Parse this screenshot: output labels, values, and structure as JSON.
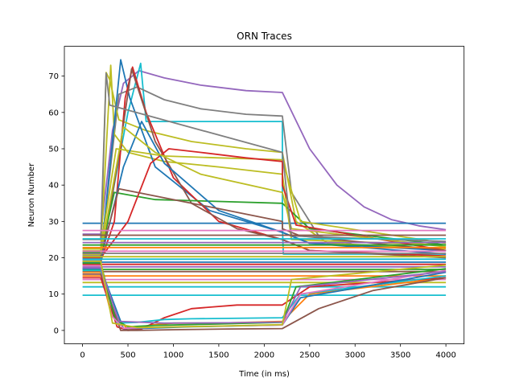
{
  "chart_data": {
    "type": "line",
    "title": "ORN Traces",
    "xlabel": "Time (in ms)",
    "ylabel": "Neuron Number",
    "xlim": [
      -200,
      4200
    ],
    "ylim": [
      -3.7,
      78.2
    ],
    "xticks": [
      0,
      500,
      1000,
      1500,
      2000,
      2500,
      3000,
      3500,
      4000
    ],
    "yticks": [
      0,
      10,
      20,
      30,
      40,
      50,
      60,
      70
    ],
    "grid": false,
    "legend": "none",
    "stimulus_window_ms": [
      200,
      2200
    ],
    "palette": [
      "#1f77b4",
      "#ff7f0e",
      "#2ca02c",
      "#d62728",
      "#9467bd",
      "#8c564b",
      "#e377c2",
      "#7f7f7f",
      "#bcbd22",
      "#17becf"
    ],
    "series": [
      {
        "color": "#9467bd",
        "x": [
          0,
          200,
          330,
          450,
          620,
          900,
          1300,
          1800,
          2200,
          2500,
          2800,
          3100,
          3400,
          3700,
          4000
        ],
        "y": [
          26.5,
          26.5,
          55,
          68,
          71.5,
          69.5,
          67.5,
          66,
          65.5,
          50,
          40,
          34,
          30.5,
          28.8,
          27.7
        ]
      },
      {
        "color": "#1f77b4",
        "x": [
          0,
          4000
        ],
        "y": [
          29.5,
          29.5
        ]
      },
      {
        "color": "#17becf",
        "x": [
          0,
          200,
          500,
          640,
          700,
          2200,
          2200,
          2210,
          4000
        ],
        "y": [
          20.5,
          20.5,
          60,
          73.5,
          57.5,
          57.5,
          29,
          21,
          21
        ]
      },
      {
        "color": "#7f7f7f",
        "x": [
          0,
          200,
          400,
          600,
          900,
          1300,
          1800,
          2200,
          2300,
          2600,
          3000,
          4000
        ],
        "y": [
          21,
          21,
          65,
          67,
          63.5,
          61,
          59.5,
          59,
          38,
          26,
          23.5,
          22
        ]
      },
      {
        "color": "#bcbd22",
        "x": [
          0,
          200,
          260,
          300,
          400,
          700,
          1200,
          1800,
          2200,
          2350,
          2700,
          4000
        ],
        "y": [
          21,
          21,
          71,
          69,
          58,
          55,
          52,
          50,
          49,
          30,
          24,
          22.5
        ]
      },
      {
        "color": "#bcbd22",
        "x": [
          0,
          200,
          310,
          350,
          500,
          900,
          1500,
          2200,
          2200,
          2300,
          4000
        ],
        "y": [
          22,
          22,
          73,
          54,
          49,
          46.5,
          45,
          43,
          43,
          25,
          23.5
        ]
      },
      {
        "color": "#1f77b4",
        "x": [
          0,
          200,
          420,
          520,
          800,
          1400,
          2200,
          2500,
          4000
        ],
        "y": [
          20,
          20,
          74.5,
          64,
          45,
          33,
          27,
          24,
          22
        ]
      },
      {
        "color": "#d62728",
        "x": [
          0,
          200,
          350,
          470,
          550,
          700,
          1000,
          1500,
          2200,
          2500,
          4000
        ],
        "y": [
          19,
          19,
          30,
          64,
          72.5,
          60,
          42,
          30,
          25,
          22,
          20.5
        ]
      },
      {
        "color": "#8c564b",
        "x": [
          0,
          200,
          380,
          540,
          800,
          1200,
          1700,
          2200,
          2500,
          4000
        ],
        "y": [
          18.5,
          18.5,
          45,
          72,
          52,
          35,
          28,
          25,
          22,
          20
        ]
      },
      {
        "color": "#2ca02c",
        "x": [
          0,
          200,
          350,
          800,
          1500,
          2200,
          2500,
          4000
        ],
        "y": [
          21.5,
          21.5,
          38,
          36,
          35.5,
          35,
          28,
          23.5
        ]
      },
      {
        "color": "#bcbd22",
        "x": [
          0,
          200,
          370,
          900,
          1500,
          2200,
          2200,
          2400,
          4000
        ],
        "y": [
          22.5,
          22.5,
          50,
          48,
          47.5,
          47,
          47,
          30,
          24
        ]
      },
      {
        "color": "#d62728",
        "x": [
          0,
          200,
          500,
          750,
          950,
          1300,
          1800,
          2200,
          2200,
          2350,
          4000
        ],
        "y": [
          20,
          20,
          30,
          46,
          50,
          49,
          47.5,
          46.5,
          40,
          29,
          22
        ]
      },
      {
        "color": "#1f77b4",
        "x": [
          0,
          200,
          450,
          650,
          900,
          1500,
          2200,
          2500,
          4000
        ],
        "y": [
          19.5,
          19.5,
          45,
          57.5,
          46,
          33,
          27,
          24,
          21
        ]
      },
      {
        "color": "#8c564b",
        "x": [
          0,
          200,
          400,
          1000,
          1600,
          2200,
          2200,
          2400,
          4000
        ],
        "y": [
          20.5,
          20.5,
          39,
          36,
          33,
          30,
          28,
          26,
          22
        ]
      },
      {
        "color": "#bcbd22",
        "x": [
          0,
          200,
          450,
          800,
          1300,
          2200,
          2300,
          4000
        ],
        "y": [
          21,
          21,
          56,
          49,
          43,
          38,
          28,
          23
        ]
      },
      {
        "color": "#7f7f7f",
        "x": [
          0,
          200,
          260,
          300,
          2200,
          2300,
          4000
        ],
        "y": [
          25,
          25,
          70.8,
          62,
          49,
          26,
          24.5
        ]
      },
      {
        "color": "#e377c2",
        "x": [
          0,
          4000
        ],
        "y": [
          27.5,
          27.5
        ]
      },
      {
        "color": "#8c564b",
        "x": [
          0,
          4000
        ],
        "y": [
          26.2,
          26.2
        ]
      },
      {
        "color": "#17becf",
        "x": [
          0,
          4000
        ],
        "y": [
          25.2,
          25.2
        ]
      },
      {
        "color": "#9467bd",
        "x": [
          0,
          4000
        ],
        "y": [
          24.2,
          24.2
        ]
      },
      {
        "color": "#2ca02c",
        "x": [
          0,
          4000
        ],
        "y": [
          23.5,
          23.5
        ]
      },
      {
        "color": "#ff7f0e",
        "x": [
          0,
          4000
        ],
        "y": [
          22.8,
          22.8
        ]
      },
      {
        "color": "#e377c2",
        "x": [
          0,
          4000
        ],
        "y": [
          21.8,
          21.8
        ]
      },
      {
        "color": "#7f7f7f",
        "x": [
          0,
          4000
        ],
        "y": [
          21.2,
          21.2
        ]
      },
      {
        "color": "#bcbd22",
        "x": [
          0,
          4000
        ],
        "y": [
          20.3,
          20.3
        ]
      },
      {
        "color": "#17becf",
        "x": [
          0,
          4000
        ],
        "y": [
          19.6,
          19.6
        ]
      },
      {
        "color": "#1f77b4",
        "x": [
          0,
          4000
        ],
        "y": [
          18.8,
          18.8
        ]
      },
      {
        "color": "#d62728",
        "x": [
          0,
          4000
        ],
        "y": [
          18.2,
          18.2
        ]
      },
      {
        "color": "#9467bd",
        "x": [
          0,
          4000
        ],
        "y": [
          17.5,
          17.5
        ]
      },
      {
        "color": "#2ca02c",
        "x": [
          0,
          4000
        ],
        "y": [
          16.8,
          16.8
        ]
      },
      {
        "color": "#8c564b",
        "x": [
          0,
          4000
        ],
        "y": [
          16.2,
          16.2
        ]
      },
      {
        "color": "#ff7f0e",
        "x": [
          0,
          4000
        ],
        "y": [
          15,
          15
        ]
      },
      {
        "color": "#e377c2",
        "x": [
          0,
          4000
        ],
        "y": [
          14,
          14
        ]
      },
      {
        "color": "#bcbd22",
        "x": [
          0,
          4000
        ],
        "y": [
          13.2,
          13.2
        ]
      },
      {
        "color": "#17becf",
        "x": [
          0,
          4000
        ],
        "y": [
          12,
          12
        ]
      },
      {
        "color": "#17becf",
        "x": [
          0,
          4000
        ],
        "y": [
          9.7,
          9.7
        ]
      },
      {
        "color": "#ff7f0e",
        "x": [
          0,
          200,
          300,
          500,
          750,
          1000,
          1500,
          2200,
          2500,
          4000
        ],
        "y": [
          16,
          16,
          6,
          0.2,
          1.5,
          2,
          2,
          2.5,
          10,
          14.5
        ]
      },
      {
        "color": "#d62728",
        "x": [
          0,
          200,
          380,
          500,
          650,
          900,
          1200,
          1700,
          2200,
          2500,
          4000
        ],
        "y": [
          14.5,
          14.5,
          1,
          0,
          0.4,
          3.5,
          6,
          7,
          7,
          12,
          14.5
        ]
      },
      {
        "color": "#17becf",
        "x": [
          0,
          200,
          380,
          600,
          900,
          1200,
          2200,
          2400,
          4000
        ],
        "y": [
          16.5,
          16.5,
          2,
          2.2,
          3,
          3.2,
          3.5,
          10,
          15
        ]
      },
      {
        "color": "#8c564b",
        "x": [
          0,
          200,
          420,
          600,
          1000,
          1600,
          2200,
          2600,
          3200,
          4000
        ],
        "y": [
          15.5,
          15.5,
          0,
          0,
          0.2,
          0.4,
          0.5,
          6,
          11,
          14.5
        ]
      },
      {
        "color": "#1f77b4",
        "x": [
          0,
          200,
          450,
          700,
          1200,
          2200,
          2400,
          4000
        ],
        "y": [
          17,
          17,
          0.5,
          0.6,
          1,
          1.5,
          9,
          16
        ]
      },
      {
        "color": "#2ca02c",
        "x": [
          0,
          200,
          360,
          500,
          800,
          1500,
          2200,
          2350,
          4000
        ],
        "y": [
          18.5,
          18.5,
          3,
          1,
          1.4,
          1.8,
          2.2,
          12,
          17
        ]
      },
      {
        "color": "#e377c2",
        "x": [
          0,
          200,
          320,
          450,
          1000,
          2200,
          2400,
          4000
        ],
        "y": [
          17.8,
          17.8,
          4,
          0.6,
          1,
          1.5,
          10,
          16.5
        ]
      },
      {
        "color": "#9467bd",
        "x": [
          0,
          200,
          400,
          900,
          1600,
          2200,
          2400,
          4000
        ],
        "y": [
          17.2,
          17.2,
          2.5,
          2,
          2.1,
          2.3,
          12,
          16.2
        ]
      },
      {
        "color": "#bcbd22",
        "x": [
          0,
          200,
          330,
          600,
          1500,
          2200,
          2300,
          4000
        ],
        "y": [
          19,
          19,
          2,
          0.8,
          1.2,
          1.6,
          14,
          18
        ]
      }
    ]
  }
}
